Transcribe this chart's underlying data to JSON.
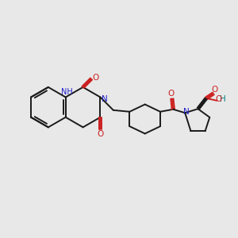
{
  "bg_color": "#e8e8e8",
  "bond_color": "#1a1a1a",
  "n_color": "#2020cc",
  "o_color": "#cc2020",
  "h_color": "#008080",
  "lw": 1.4,
  "figsize": [
    3.0,
    3.0
  ],
  "dpi": 100,
  "xlim": [
    0,
    10
  ],
  "ylim": [
    0,
    10
  ]
}
